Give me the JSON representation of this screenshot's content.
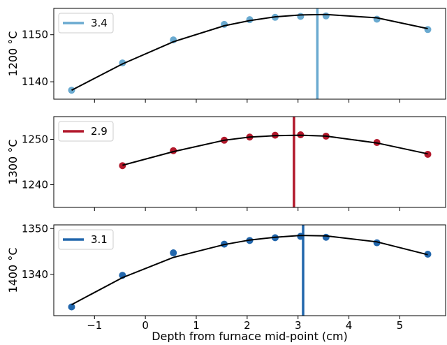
{
  "chart_data": {
    "type": "line",
    "xlabel": "Depth from furnace mid-point (cm)",
    "xlim": [
      -1.8,
      5.9
    ],
    "xticks": [
      -1,
      0,
      1,
      2,
      3,
      4,
      5
    ],
    "fit_color": "#000000",
    "panels": [
      {
        "ylabel": "1200 °C",
        "ylim": [
          1136.3,
          1155.6
        ],
        "yticks": [
          1140,
          1150
        ],
        "color": "#6aaad0",
        "marker": {
          "label": "3.4",
          "x": 3.38
        },
        "legend": {
          "loc": "upper-left"
        },
        "points": {
          "x": [
            -1.45,
            -0.45,
            0.55,
            1.55,
            2.05,
            2.55,
            3.05,
            3.55,
            4.55,
            5.55
          ],
          "y": [
            1138.2,
            1144.0,
            1148.9,
            1152.2,
            1153.2,
            1153.7,
            1153.9,
            1154.0,
            1153.3,
            1151.1
          ]
        },
        "fit": {
          "x": [
            -1.45,
            -0.45,
            0.55,
            1.55,
            2.05,
            2.55,
            3.05,
            3.55,
            4.55,
            5.55
          ],
          "y": [
            1138.2,
            1143.8,
            1148.5,
            1151.9,
            1153.0,
            1153.8,
            1154.2,
            1154.3,
            1153.6,
            1151.3
          ]
        }
      },
      {
        "ylabel": "1300 °C",
        "ylim": [
          1235.0,
          1255.0
        ],
        "yticks": [
          1240,
          1250
        ],
        "color": "#b2182b",
        "marker": {
          "label": "2.9",
          "x": 2.92
        },
        "legend": {
          "loc": "upper-left"
        },
        "points": {
          "x": [
            -0.45,
            0.55,
            1.55,
            2.05,
            2.55,
            3.05,
            3.55,
            4.55,
            5.55
          ],
          "y": [
            1244.2,
            1247.5,
            1249.8,
            1250.5,
            1250.9,
            1251.0,
            1250.7,
            1249.3,
            1246.7
          ]
        },
        "fit": {
          "x": [
            -0.45,
            0.55,
            1.55,
            2.05,
            2.55,
            3.05,
            3.55,
            4.55,
            5.55
          ],
          "y": [
            1244.3,
            1247.3,
            1249.8,
            1250.5,
            1250.8,
            1250.9,
            1250.7,
            1249.2,
            1246.8
          ]
        }
      },
      {
        "ylabel": "1400 °C",
        "ylim": [
          1331.0,
          1350.8
        ],
        "yticks": [
          1340,
          1350
        ],
        "color": "#2166ac",
        "marker": {
          "label": "3.1",
          "x": 3.1
        },
        "legend": {
          "loc": "upper-left"
        },
        "points": {
          "x": [
            -1.45,
            -0.45,
            0.55,
            1.55,
            2.05,
            2.55,
            3.05,
            3.55,
            4.55,
            5.55
          ],
          "y": [
            1332.9,
            1339.8,
            1344.7,
            1346.6,
            1347.4,
            1348.0,
            1348.3,
            1348.1,
            1346.9,
            1344.4
          ]
        },
        "fit": {
          "x": [
            -1.45,
            -0.45,
            0.55,
            1.55,
            2.05,
            2.55,
            3.05,
            3.55,
            4.55,
            5.55
          ],
          "y": [
            1333.4,
            1339.3,
            1343.7,
            1346.5,
            1347.5,
            1348.1,
            1348.5,
            1348.4,
            1347.1,
            1344.3
          ]
        }
      }
    ]
  }
}
